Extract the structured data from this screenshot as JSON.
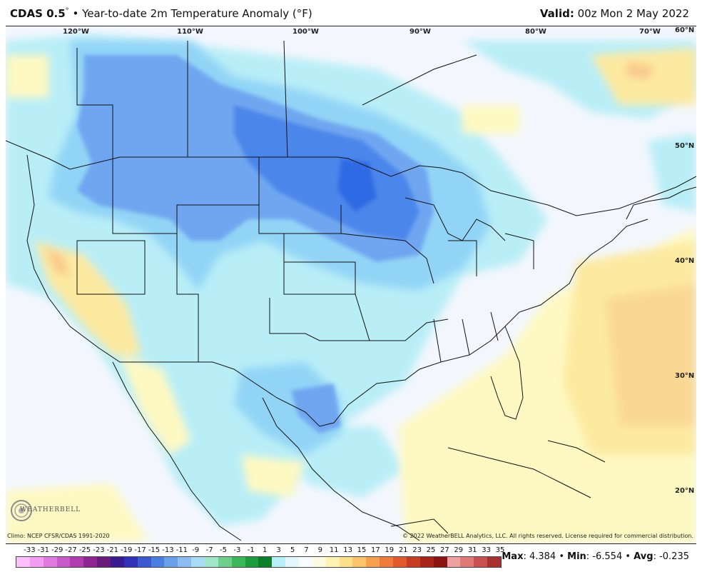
{
  "header": {
    "model": "CDAS 0.5",
    "degree": "°",
    "sep": " • ",
    "subtitle": "Year-to-date 2m Temperature Anomaly (°F)",
    "valid_label": "Valid:",
    "valid_value": "00z Mon 2 May 2022"
  },
  "map": {
    "longitude_labels": [
      "120°W",
      "110°W",
      "100°W",
      "90°W",
      "80°W",
      "70°W"
    ],
    "latitude_labels": [
      "60°N",
      "50°N",
      "40°N",
      "30°N",
      "20°N"
    ],
    "palette": {
      "ocean_land_background": "#f3f7fd",
      "light_cyan": "#b9eef7",
      "sky_blue": "#92d4f6",
      "blue": "#6fa6f0",
      "dark_blue": "#4b86ea",
      "deepest_blue": "#2f6ae3",
      "light_yellow": "#fef9c2",
      "yellow": "#fdeaa1",
      "orange": "#f8c98a"
    }
  },
  "footer": {
    "climo": "Climo: NCEP CFSR/CDAS 1991-2020",
    "copyright": "© 2022 WeatherBELL Analytics, LLC. All rights reserved. License required for commercial distribution.",
    "logo_text": "WEATHERBELL"
  },
  "legend": {
    "labels": [
      "-33",
      "-31",
      "-29",
      "-27",
      "-25",
      "-23",
      "-21",
      "-19",
      "-17",
      "-15",
      "-13",
      "-11",
      "-9",
      "-7",
      "-5",
      "-3",
      "-1",
      "1",
      "3",
      "5",
      "7",
      "9",
      "11",
      "13",
      "15",
      "17",
      "19",
      "21",
      "23",
      "25",
      "27",
      "29",
      "31",
      "33",
      "35"
    ],
    "colors": [
      "#ffc0ff",
      "#f29cf2",
      "#e07ae0",
      "#c95ac9",
      "#b03cb0",
      "#8c2690",
      "#6a1a7a",
      "#3a1a90",
      "#3030b8",
      "#3c5ad0",
      "#4a7ee0",
      "#6aa0ea",
      "#8cbcf0",
      "#a8dcf6",
      "#a0e6c8",
      "#6cd08c",
      "#3cb85c",
      "#1c9c3c",
      "#0c8028",
      "#b8f0fa",
      "#e2f8fc",
      "#f8fcff",
      "#fffbe0",
      "#fef3b0",
      "#fde08a",
      "#fbc46a",
      "#f7a050",
      "#f07c3c",
      "#e05a2c",
      "#c83c24",
      "#a82418",
      "#8c1410",
      "#f0a0a0",
      "#e07878",
      "#c85050",
      "#a83030"
    ]
  },
  "stats": {
    "max_label": "Max",
    "max_value": "4.384",
    "min_label": "Min",
    "min_value": "-6.554",
    "avg_label": "Avg",
    "avg_value": "-0.235",
    "sep": " • "
  }
}
